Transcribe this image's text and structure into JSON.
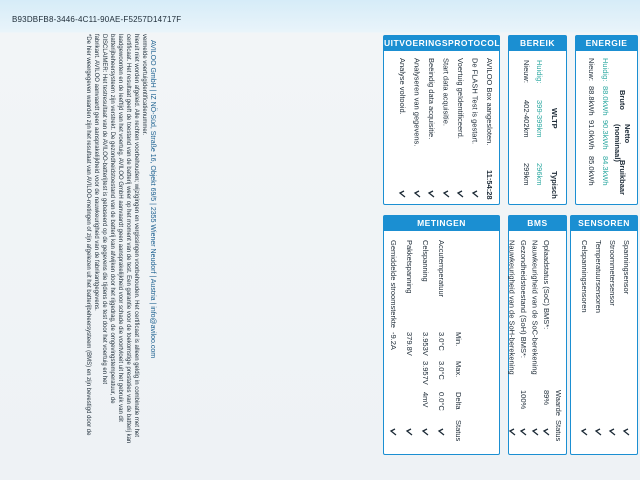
{
  "header": {
    "id": "B93DBFB8-3446-4C11-90AE-F5257D14717F"
  },
  "notes": {
    "footnote": "*De hier weergegeven waarden zijn het resultaat van AVILOO-metingen of zijn afgelezen uit het batterijbeheersysteem (BMS) en zijn bevestigd door de fabrikant. AVILOO aanvaardt geen aansprakelijkheid voor de nauwkeurigheid van de fabrikantgegevens.",
    "disclaimer": "DISCLAIMER: Het testresultaat van de AVILOO-batterijtest is gebaseerd op de gegevens die tijdens de test door het voertuig en het batterijbeheersysteem zijn verstrekt. De gezondheidstoestand van de batterij kan afwijken door het rijgedrag, de omgevingstemperatuur, de laadgewoonten en de leeftijd van het voertuig. AVILOO GmbH aanvaardt geen aansprakelijkheid voor schade die voortvloeit uit het gebruik van dit certificaat. Het resultaat geeft de toestand van de batterij weer op het moment van de test. Een garantie voor de toekomstige prestaties van de batterij kan hieruit niet worden afgeleid. Alle rechten voorbehouden; wijzigingen en vergissingen voorbehouden. Het certificaat is alleen geldig in combinatie met het vermelde voertuigidentificatienummer.",
    "footer": "AVILOO GmbH | IZ NÖ-Süd, Straße 16, Objekt 69/5 | 2355 Wiener Neudorf | Austria | info@aviloo.com"
  },
  "protocol": {
    "title": "UITVOERINGSPROTOCOL",
    "rows": [
      {
        "text": "AVILOO Box aangesloten.",
        "time": "11:54:28"
      },
      {
        "text": "De FLASH Test is gestart."
      },
      {
        "text": "Voertuig geïdentificeerd."
      },
      {
        "text": "Start data acquisitie."
      },
      {
        "text": "Beëindig data acquisitie."
      },
      {
        "text": "Analyseren van gegevens."
      },
      {
        "text": "Analyse voltooid."
      }
    ]
  },
  "range": {
    "title": "BEREIK",
    "headers": [
      "WLTP",
      "Typisch"
    ],
    "rows": [
      {
        "label": "Huidig:",
        "values": [
          "399-399km",
          "296km"
        ]
      },
      {
        "label": "Nieuw:",
        "values": [
          "402-402km",
          "299km"
        ]
      }
    ]
  },
  "energy": {
    "title": "ENERGIE",
    "headers": [
      "Bruto",
      "Netto (nominaal)",
      "Bruikbaar"
    ],
    "rows": [
      {
        "label": "Huidig:",
        "values": [
          "88.0kWh",
          "90.3kWh",
          "84.3kWh"
        ]
      },
      {
        "label": "Nieuw:",
        "values": [
          "88.8kWh",
          "91.0kWh",
          "85.0kWh"
        ]
      }
    ]
  },
  "measurements": {
    "title": "METINGEN",
    "headers": [
      "Min.",
      "Max.",
      "Delta",
      "Status"
    ],
    "rows": [
      {
        "label": "Accutemperatuur",
        "values": [
          "3.0°C",
          "3.0°C",
          "0.0°C"
        ]
      },
      {
        "label": "Celspanning",
        "values": [
          "3.953V",
          "3.957V",
          "4mV"
        ]
      },
      {
        "label": "Pakketspanning",
        "values": [
          "379.8V"
        ]
      },
      {
        "label": "Gemiddelde stroomsterkte",
        "values": [
          "-9.2A"
        ]
      }
    ]
  },
  "bms": {
    "title": "BMS",
    "headers": [
      "Waarde",
      "Status"
    ],
    "rows": [
      {
        "label": "Oplaadstatus (SoC) BMS*:",
        "value": "89%"
      },
      {
        "label": "Nauwkeurigheid van de SoC-berekening"
      },
      {
        "label": "Gezondheidstoestand (SoH) BMS*:",
        "value": "100%"
      },
      {
        "label": "Nauwkeurigheid van de SoH-berekening"
      }
    ]
  },
  "sensors": {
    "title": "SENSOREN",
    "rows": [
      "Spanningsensor",
      "Stroommetersensor",
      "Temperatuursensoren",
      "Celspanningsensoren"
    ]
  }
}
